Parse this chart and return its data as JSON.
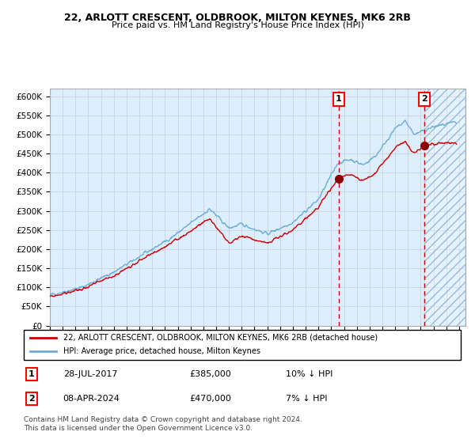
{
  "title1": "22, ARLOTT CRESCENT, OLDBROOK, MILTON KEYNES, MK6 2RB",
  "title2": "Price paid vs. HM Land Registry's House Price Index (HPI)",
  "xlim_start": 1995.0,
  "xlim_end": 2027.5,
  "ylim_min": 0,
  "ylim_max": 620000,
  "yticks": [
    0,
    50000,
    100000,
    150000,
    200000,
    250000,
    300000,
    350000,
    400000,
    450000,
    500000,
    550000,
    600000
  ],
  "ytick_labels": [
    "£0",
    "£50K",
    "£100K",
    "£150K",
    "£200K",
    "£250K",
    "£300K",
    "£350K",
    "£400K",
    "£450K",
    "£500K",
    "£550K",
    "£600K"
  ],
  "sale1_date": 2017.57,
  "sale1_price": 385000,
  "sale1_label": "1",
  "sale2_date": 2024.27,
  "sale2_price": 470000,
  "sale2_label": "2",
  "hpi_color": "#6baed6",
  "price_color": "#cc0000",
  "marker_color": "#8b0000",
  "bg_color": "#ddeeff",
  "grid_color": "#aaaaaa",
  "legend_line1": "22, ARLOTT CRESCENT, OLDBROOK, MILTON KEYNES, MK6 2RB (detached house)",
  "legend_line2": "HPI: Average price, detached house, Milton Keynes",
  "annot1": "28-JUL-2017",
  "annot1_price": "£385,000",
  "annot1_hpi": "10% ↓ HPI",
  "annot2": "08-APR-2024",
  "annot2_price": "£470,000",
  "annot2_hpi": "7% ↓ HPI",
  "footer": "Contains HM Land Registry data © Crown copyright and database right 2024.\nThis data is licensed under the Open Government Licence v3.0.",
  "hpi_anchors_t": [
    1995.0,
    1997.5,
    2000.0,
    2002.0,
    2004.5,
    2007.5,
    2009.0,
    2010.0,
    2012.0,
    2014.0,
    2016.0,
    2017.5,
    2018.5,
    2019.5,
    2020.5,
    2022.0,
    2022.8,
    2023.5,
    2024.3,
    2025.0,
    2026.5
  ],
  "hpi_anchors_v": [
    80000,
    100000,
    140000,
    180000,
    230000,
    305000,
    255000,
    265000,
    240000,
    270000,
    330000,
    425000,
    435000,
    420000,
    445000,
    515000,
    535000,
    500000,
    510000,
    520000,
    530000
  ],
  "price_anchors_t": [
    1995.0,
    1997.5,
    2000.0,
    2002.0,
    2004.5,
    2007.5,
    2009.0,
    2010.0,
    2012.0,
    2014.0,
    2016.0,
    2017.57,
    2018.5,
    2019.5,
    2020.5,
    2022.0,
    2022.8,
    2023.5,
    2024.27,
    2025.0,
    2026.5
  ],
  "price_anchors_v": [
    75000,
    95000,
    130000,
    170000,
    215000,
    280000,
    215000,
    235000,
    215000,
    250000,
    310000,
    385000,
    395000,
    380000,
    400000,
    465000,
    480000,
    450000,
    470000,
    475000,
    480000
  ]
}
